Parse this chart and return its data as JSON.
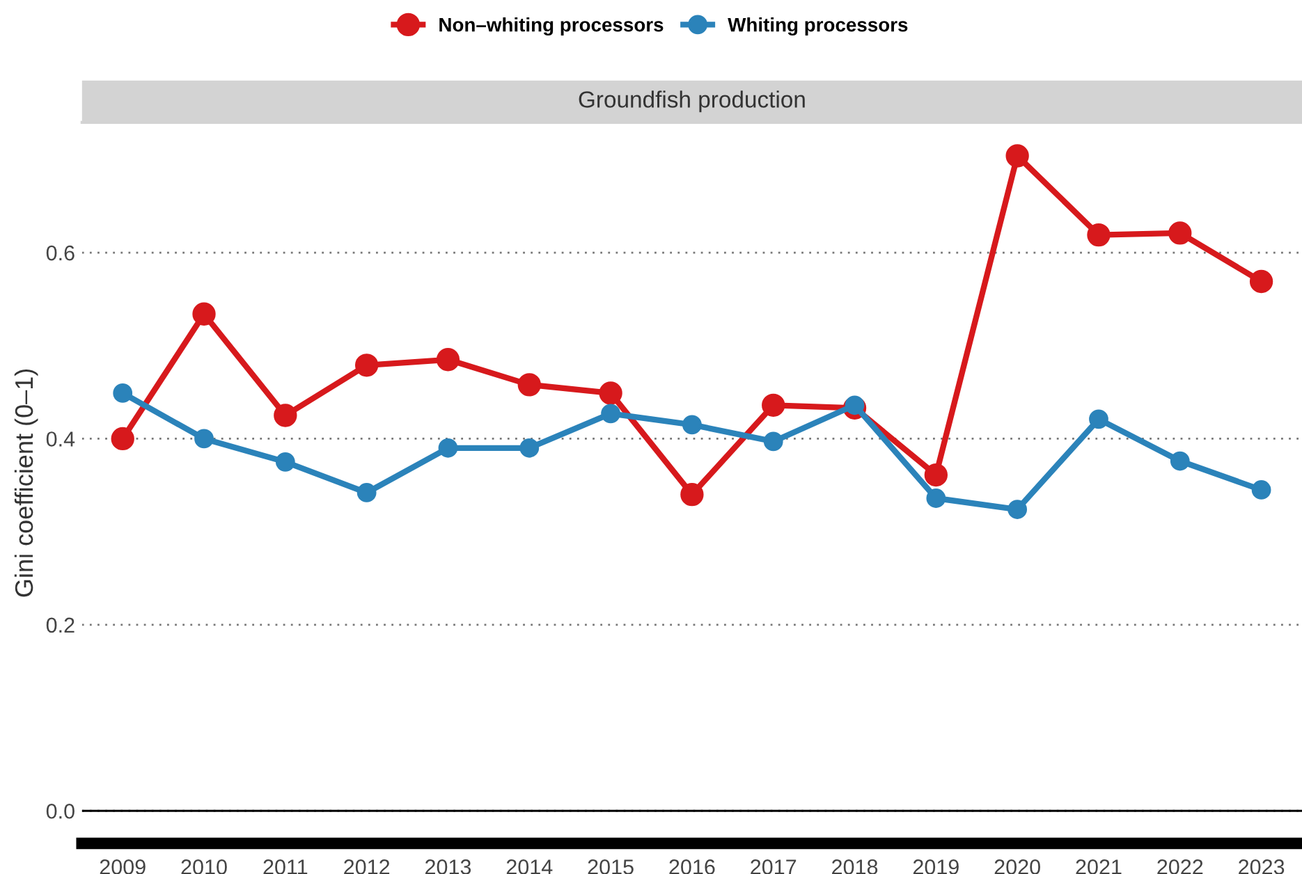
{
  "chart_data": {
    "type": "line",
    "title": "Groundfish production",
    "ylabel": "Gini coefficient (0–1)",
    "categories": [
      "2009",
      "2010",
      "2011",
      "2012",
      "2013",
      "2014",
      "2015",
      "2016",
      "2017",
      "2018",
      "2019",
      "2020",
      "2021",
      "2022",
      "2023"
    ],
    "series": [
      {
        "name": "Non–whiting processors",
        "color": "#d7191c",
        "values": [
          0.4,
          0.534,
          0.425,
          0.479,
          0.485,
          0.458,
          0.449,
          0.34,
          0.436,
          0.433,
          0.361,
          0.704,
          0.619,
          0.621,
          0.569
        ]
      },
      {
        "name": "Whiting processors",
        "color": "#2b83ba",
        "values": [
          0.449,
          0.4,
          0.375,
          0.342,
          0.39,
          0.39,
          0.427,
          0.415,
          0.397,
          0.436,
          0.336,
          0.324,
          0.421,
          0.376,
          0.345
        ]
      }
    ],
    "ylim": [
      -0.035,
      0.74
    ],
    "yticks": [
      {
        "value": 0,
        "label": "0.0"
      },
      0.2,
      0.4,
      0.6
    ],
    "ref_lines": [
      {
        "axis": "y",
        "value": 0,
        "color": "#000000",
        "line_style": "solid"
      }
    ],
    "grid": "y",
    "legend": "top",
    "marker": "circle",
    "line_style": "solid"
  }
}
